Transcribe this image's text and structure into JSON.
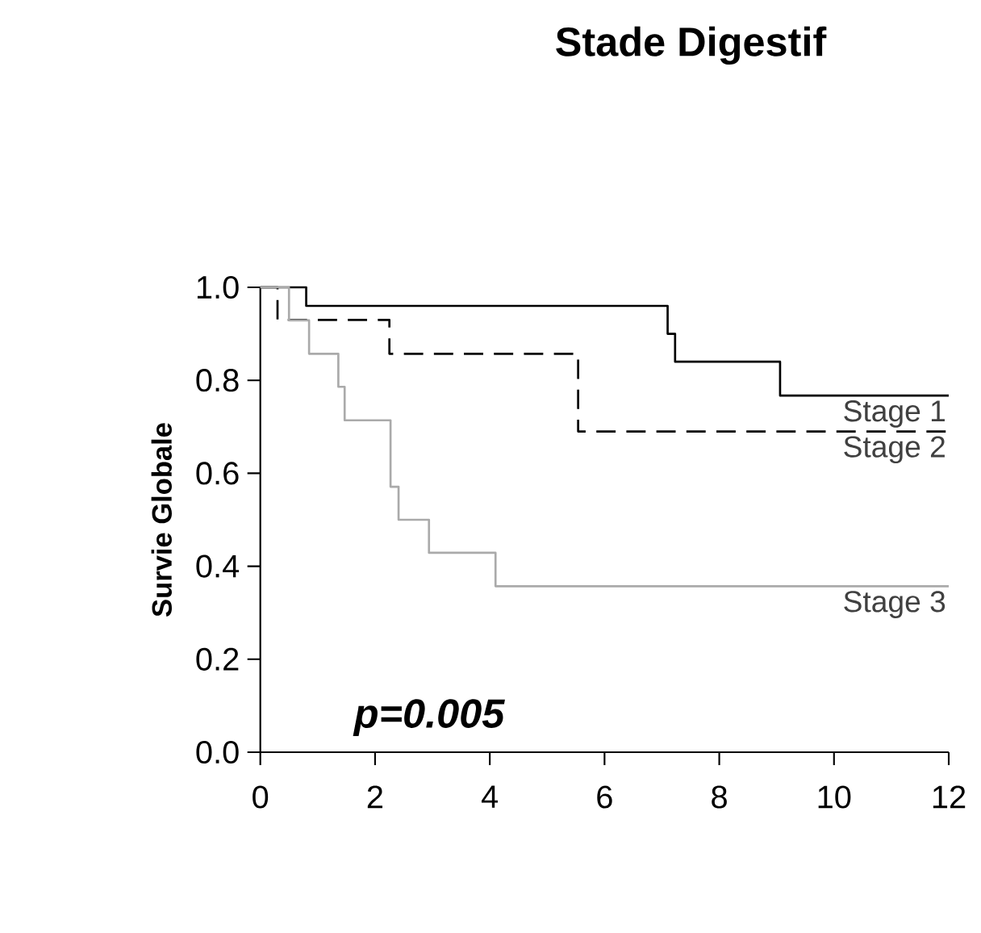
{
  "chart_data": {
    "type": "step",
    "title": "Stade Digestif",
    "ylabel": "Survie Globale",
    "xlim": [
      0,
      12
    ],
    "xticks": [
      0,
      2,
      4,
      6,
      8,
      10,
      12
    ],
    "ylim": [
      0,
      1
    ],
    "yticks": [
      {
        "value": 0,
        "label": "0.0"
      },
      {
        "value": 0.2,
        "label": "0.2"
      },
      {
        "value": 0.4,
        "label": "0.4"
      },
      {
        "value": 0.6,
        "label": "0.6"
      },
      {
        "value": 0.8,
        "label": "0.8"
      },
      {
        "value": 1,
        "label": "1.0"
      }
    ],
    "grid": false,
    "legend": false,
    "marker": "none",
    "series": [
      {
        "name": "Stage 1",
        "color": "#000000",
        "line_style": "solid",
        "x": [
          0,
          0.8,
          7.1,
          7.23,
          9.06,
          12
        ],
        "values": [
          1,
          0.96,
          0.9,
          0.84,
          0.767,
          0.767
        ]
      },
      {
        "name": "Stage 2",
        "color": "#000000",
        "line_style": "dashed",
        "x": [
          0,
          0.3,
          2.25,
          5.54,
          12
        ],
        "values": [
          1,
          0.93,
          0.857,
          0.69,
          0.69
        ]
      },
      {
        "name": "Stage 3",
        "color": "#aaaaaa",
        "line_style": "solid",
        "x": [
          0,
          0.5,
          0.85,
          1.36,
          1.47,
          2.27,
          2.41,
          2.94,
          4.1,
          12
        ],
        "values": [
          1,
          0.929,
          0.857,
          0.786,
          0.714,
          0.571,
          0.5,
          0.429,
          0.357,
          0.357
        ]
      }
    ],
    "annotations": [
      "p=0.005"
    ]
  }
}
